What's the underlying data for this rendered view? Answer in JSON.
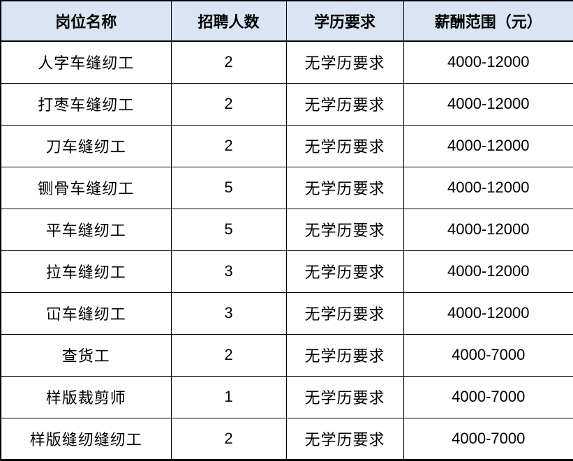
{
  "chart_data": {
    "type": "table",
    "title": "",
    "columns": [
      "岗位名称",
      "招聘人数",
      "学历要求",
      "薪酬范围（元）"
    ],
    "rows": [
      [
        "人字车缝纫工",
        "2",
        "无学历要求",
        "4000-12000"
      ],
      [
        "打枣车缝纫工",
        "2",
        "无学历要求",
        "4000-12000"
      ],
      [
        "刀车缝纫工",
        "2",
        "无学历要求",
        "4000-12000"
      ],
      [
        "铡骨车缝纫工",
        "5",
        "无学历要求",
        "4000-12000"
      ],
      [
        "平车缝纫工",
        "5",
        "无学历要求",
        "4000-12000"
      ],
      [
        "拉车缝纫工",
        "3",
        "无学历要求",
        "4000-12000"
      ],
      [
        "冚车缝纫工",
        "3",
        "无学历要求",
        "4000-12000"
      ],
      [
        "查货工",
        "2",
        "无学历要求",
        "4000-7000"
      ],
      [
        "样版裁剪师",
        "1",
        "无学历要求",
        "4000-7000"
      ],
      [
        "样版缝纫缝纫工",
        "2",
        "无学历要求",
        "4000-7000"
      ]
    ]
  },
  "styles": {
    "header_bg": "#dbe5f1",
    "border_color": "#000000",
    "text_color": "#000000",
    "row_bg": "#ffffff"
  }
}
